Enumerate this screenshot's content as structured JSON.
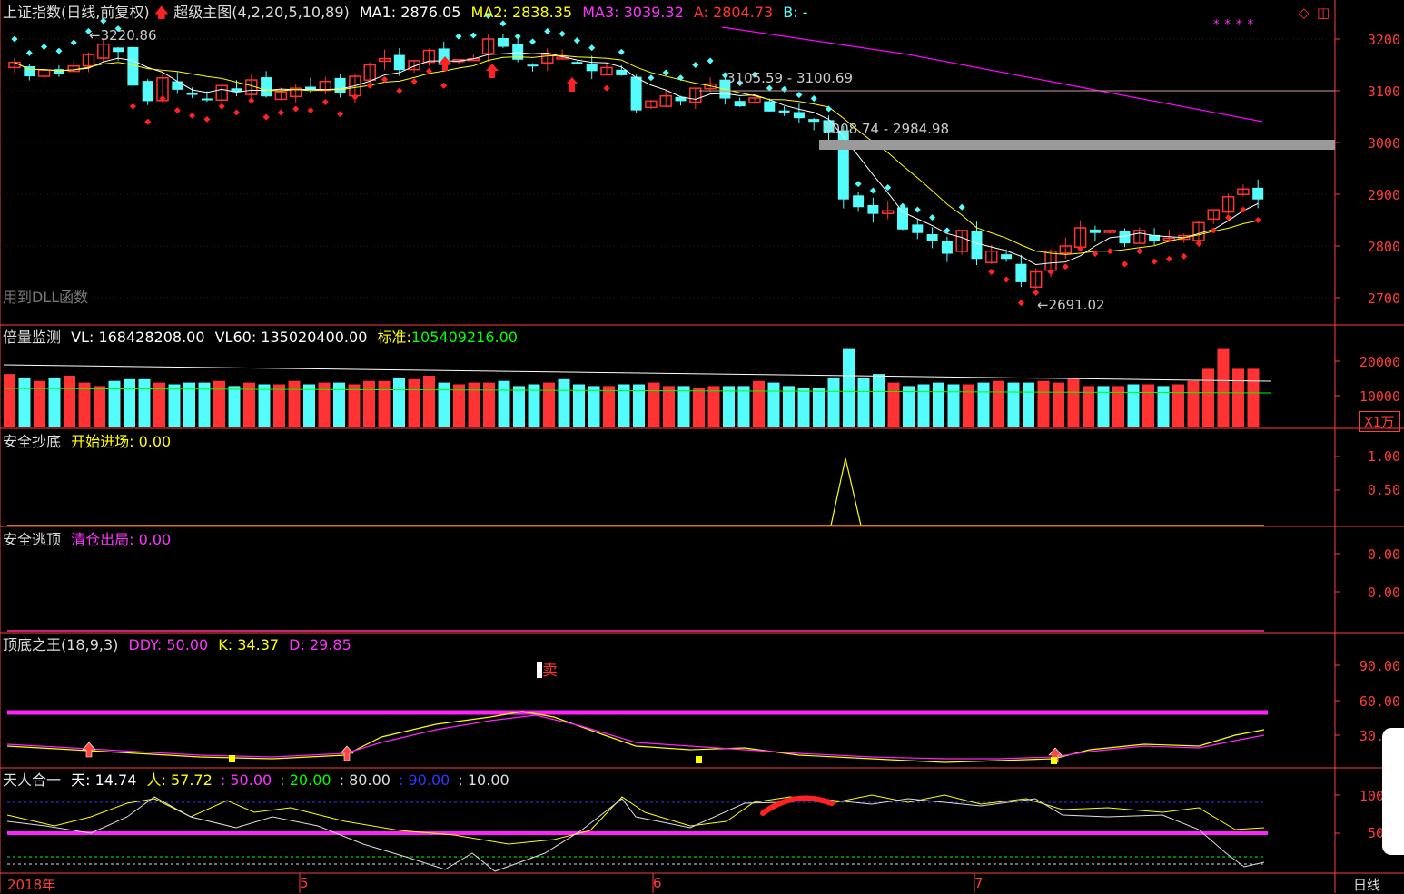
{
  "main": {
    "title": "上证指数(日线,前复权)",
    "indicator": "超级主图(4,2,20,5,10,89)",
    "ma1": "MA1: 2876.05",
    "ma2": "MA2: 2838.35",
    "ma3": "MA3: 3039.32",
    "a": "A: 2804.73",
    "b": "B: -",
    "dll_note": "用到DLL函数",
    "ann_high": "←3220.86",
    "ann_range1": "3105.59 - 3100.69",
    "ann_range2": "3008.74 - 2984.98",
    "ann_low": "←2691.02",
    "axis": [
      "3200",
      "3100",
      "3000",
      "2900",
      "2800",
      "2700"
    ],
    "icon_stars": "****",
    "colors": {
      "up": "#ff3333",
      "down": "#54fcfc",
      "ma1": "#ffffff",
      "ma2": "#ffff00",
      "ma3": "#ff00ff",
      "grid": "#ff3b3b"
    }
  },
  "volume": {
    "title": "倍量监测",
    "vl": "VL: 168428208.00",
    "vl60": "VL60: 135020400.00",
    "std_label": "标准:",
    "std_value": "105409216.00",
    "axis": [
      "20000",
      "10000"
    ],
    "unit": "X1万"
  },
  "bottom_panel": {
    "title": "安全抄底",
    "label": "开始进场:",
    "value": "0.00",
    "axis": [
      "1.00",
      "0.50"
    ]
  },
  "top_panel": {
    "title": "安全逃顶",
    "label": "清仓出局:",
    "value": "0.00",
    "axis": [
      "0.00",
      "0.00"
    ]
  },
  "kdj": {
    "title": "顶底之王(18,9,3)",
    "ddy": "DDY: 50.00",
    "k": "K: 34.37",
    "d": "D: 29.85",
    "sell": "卖",
    "axis": [
      "90.00",
      "60.00",
      "30."
    ]
  },
  "tianren": {
    "title": "天人合一",
    "tian": "天: 14.74",
    "ren": "人: 57.72",
    "v1": ": 50.00",
    "v2": ": 20.00",
    "v3": ": 80.00",
    "v4": ": 90.00",
    "v5": ": 10.00",
    "axis": [
      "100",
      "50"
    ]
  },
  "xaxis": {
    "year": "2018年",
    "m5": "5",
    "m6": "6",
    "m7": "7",
    "period": "日线"
  }
}
